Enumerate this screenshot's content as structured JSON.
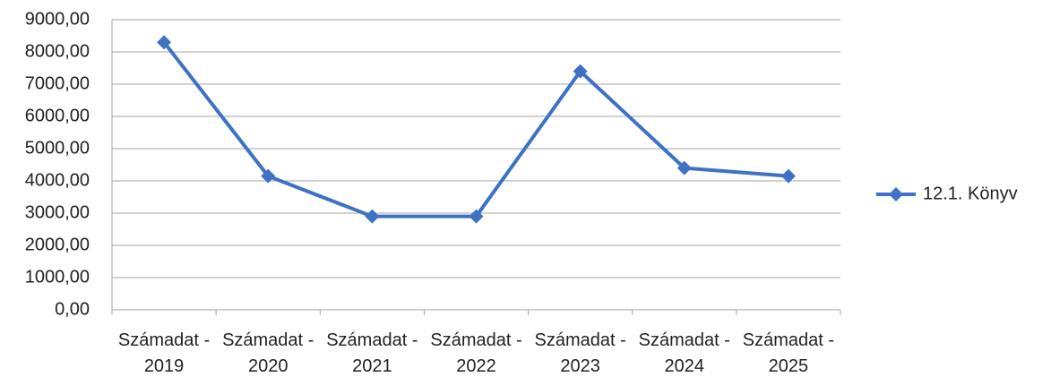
{
  "chart_data": {
    "type": "line",
    "categories": [
      "Számadat - 2019",
      "Számadat - 2020",
      "Számadat - 2021",
      "Számadat - 2022",
      "Számadat - 2023",
      "Számadat - 2024",
      "Számadat - 2025"
    ],
    "series": [
      {
        "name": "12.1. Könyv",
        "color": "#3d72c4",
        "values": [
          8300,
          4150,
          2900,
          2900,
          7400,
          4400,
          4150
        ]
      }
    ],
    "ylim": [
      0,
      9000
    ],
    "yticks": [
      {
        "value": 0,
        "label": "0,00"
      },
      {
        "value": 1000,
        "label": "1000,00"
      },
      {
        "value": 2000,
        "label": "2000,00"
      },
      {
        "value": 3000,
        "label": "3000,00"
      },
      {
        "value": 4000,
        "label": "4000,00"
      },
      {
        "value": 5000,
        "label": "5000,00"
      },
      {
        "value": 6000,
        "label": "6000,00"
      },
      {
        "value": 7000,
        "label": "7000,00"
      },
      {
        "value": 8000,
        "label": "8000,00"
      },
      {
        "value": 9000,
        "label": "9000,00"
      }
    ],
    "grid": true,
    "legend": "right"
  }
}
